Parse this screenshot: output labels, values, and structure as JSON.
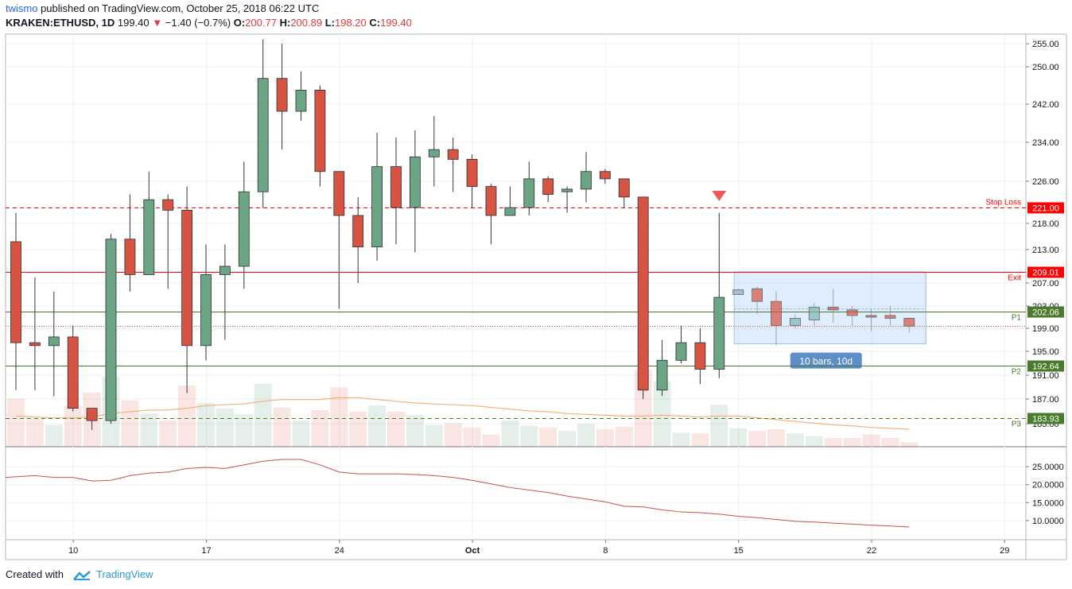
{
  "header": {
    "user": "twismo",
    "published_text": "published on TradingView.com, October 25, 2018 06:22 UTC",
    "symbol": "KRAKEN:ETHUSD, 1D",
    "last": "199.40",
    "change": "−1.40 (−0.7%)",
    "o_label": "O:",
    "o": "200.77",
    "h_label": "H:",
    "h": "200.89",
    "l_label": "L:",
    "l": "198.20",
    "c_label": "C:",
    "c": "199.40"
  },
  "footer": {
    "created_with": "Created with",
    "brand": "TradingView"
  },
  "colors": {
    "up": "#6ba583",
    "down": "#d75442",
    "stop": "#ff0000",
    "exit": "#ff0000",
    "support": "#4a7a2b",
    "projection": "#cde0f7"
  },
  "chart_data": {
    "type": "candlestick",
    "price_axis": {
      "ticks": [
        "255.00",
        "250.00",
        "242.00",
        "234.00",
        "226.00",
        "218.00",
        "213.00",
        "207.00",
        "203.00",
        "199.00",
        "195.00",
        "191.00",
        "187.00",
        "183.00"
      ]
    },
    "date_axis": {
      "ticks": [
        "10",
        "17",
        "24",
        "Oct",
        "8",
        "15",
        "22",
        "29"
      ]
    },
    "candles": [
      {
        "date": "Sep 7",
        "o": 214.5,
        "h": 220,
        "l": 188.5,
        "c": 196.5
      },
      {
        "date": "Sep 8",
        "o": 196.5,
        "h": 208,
        "l": 188.5,
        "c": 196
      },
      {
        "date": "Sep 9",
        "o": 196,
        "h": 205.5,
        "l": 187.5,
        "c": 197.5
      },
      {
        "date": "Sep 10",
        "o": 197.5,
        "h": 199.5,
        "l": 185,
        "c": 185.5
      },
      {
        "date": "Sep 11",
        "o": 185.5,
        "h": 185.5,
        "l": 182,
        "c": 183.5
      },
      {
        "date": "Sep 12",
        "o": 183.5,
        "h": 216,
        "l": 183,
        "c": 215
      },
      {
        "date": "Sep 13",
        "o": 215,
        "h": 223.5,
        "l": 205.5,
        "c": 208.5
      },
      {
        "date": "Sep 14",
        "o": 208.5,
        "h": 228,
        "l": 208.5,
        "c": 222.5
      },
      {
        "date": "Sep 15",
        "o": 222.5,
        "h": 223.5,
        "l": 206,
        "c": 220.5
      },
      {
        "date": "Sep 16",
        "o": 220.5,
        "h": 225,
        "l": 188,
        "c": 196
      },
      {
        "date": "Sep 17",
        "o": 196,
        "h": 214,
        "l": 193.5,
        "c": 208.5
      },
      {
        "date": "Sep 18",
        "o": 208.5,
        "h": 214,
        "l": 197,
        "c": 210
      },
      {
        "date": "Sep 19",
        "o": 210,
        "h": 230,
        "l": 206,
        "c": 224
      },
      {
        "date": "Sep 20",
        "o": 224,
        "h": 256,
        "l": 221,
        "c": 247.5
      },
      {
        "date": "Sep 21",
        "o": 247.5,
        "h": 255,
        "l": 232.5,
        "c": 240.5
      },
      {
        "date": "Sep 22",
        "o": 240.5,
        "h": 249,
        "l": 238.5,
        "c": 245
      },
      {
        "date": "Sep 23",
        "o": 245,
        "h": 246,
        "l": 225,
        "c": 228
      },
      {
        "date": "Sep 24",
        "o": 228,
        "h": 228,
        "l": 202.5,
        "c": 219.5
      },
      {
        "date": "Sep 25",
        "o": 219.5,
        "h": 223,
        "l": 207,
        "c": 213.5
      },
      {
        "date": "Sep 26",
        "o": 213.5,
        "h": 236,
        "l": 211,
        "c": 229
      },
      {
        "date": "Sep 27",
        "o": 229,
        "h": 235,
        "l": 214,
        "c": 221
      },
      {
        "date": "Sep 28",
        "o": 221,
        "h": 236.5,
        "l": 212.5,
        "c": 231
      },
      {
        "date": "Sep 29",
        "o": 231,
        "h": 239.5,
        "l": 225,
        "c": 232.5
      },
      {
        "date": "Sep 30",
        "o": 232.5,
        "h": 235,
        "l": 224,
        "c": 230.5
      },
      {
        "date": "Oct 1",
        "o": 230.5,
        "h": 231.5,
        "l": 221,
        "c": 225
      },
      {
        "date": "Oct 2",
        "o": 225,
        "h": 225.5,
        "l": 214,
        "c": 219.5
      },
      {
        "date": "Oct 3",
        "o": 219.5,
        "h": 225,
        "l": 219.5,
        "c": 221
      },
      {
        "date": "Oct 4",
        "o": 221,
        "h": 230,
        "l": 219.5,
        "c": 226.5
      },
      {
        "date": "Oct 5",
        "o": 226.5,
        "h": 227,
        "l": 222,
        "c": 223.5
      },
      {
        "date": "Oct 6",
        "o": 224,
        "h": 225,
        "l": 220,
        "c": 224.5
      },
      {
        "date": "Oct 7",
        "o": 224.5,
        "h": 232,
        "l": 222,
        "c": 228
      },
      {
        "date": "Oct 8",
        "o": 228,
        "h": 228.5,
        "l": 225.5,
        "c": 226.5
      },
      {
        "date": "Oct 9",
        "o": 226.5,
        "h": 226.5,
        "l": 221,
        "c": 223
      },
      {
        "date": "Oct 10",
        "o": 223,
        "h": 223,
        "l": 187,
        "c": 188.5
      },
      {
        "date": "Oct 11",
        "o": 188.5,
        "h": 197,
        "l": 187.5,
        "c": 193.5
      },
      {
        "date": "Oct 12",
        "o": 193.5,
        "h": 199.5,
        "l": 193,
        "c": 196.5
      },
      {
        "date": "Oct 13",
        "o": 196.5,
        "h": 199,
        "l": 189.5,
        "c": 192
      },
      {
        "date": "Oct 14",
        "o": 192,
        "h": 220,
        "l": 190.5,
        "c": 204.5
      },
      {
        "date": "Oct 15",
        "o": 205,
        "h": 206,
        "l": 205,
        "c": 205.8
      },
      {
        "date": "Oct 16",
        "o": 206,
        "h": 206.5,
        "l": 201.5,
        "c": 203.8
      },
      {
        "date": "Oct 17",
        "o": 203.8,
        "h": 205.5,
        "l": 196,
        "c": 199.5
      },
      {
        "date": "Oct 18",
        "o": 199.5,
        "h": 201.5,
        "l": 199,
        "c": 200.8
      },
      {
        "date": "Oct 19",
        "o": 200.5,
        "h": 203.5,
        "l": 199.5,
        "c": 202.8
      },
      {
        "date": "Oct 20",
        "o": 202.8,
        "h": 206,
        "l": 200,
        "c": 202.3
      },
      {
        "date": "Oct 21",
        "o": 202.3,
        "h": 203,
        "l": 199.5,
        "c": 201.3
      },
      {
        "date": "Oct 22",
        "o": 201.3,
        "h": 202.5,
        "l": 198.5,
        "c": 201
      },
      {
        "date": "Oct 23",
        "o": 201.3,
        "h": 203,
        "l": 199.5,
        "c": 200.8
      },
      {
        "date": "Oct 24",
        "o": 200.8,
        "h": 200.89,
        "l": 198.2,
        "c": 199.4
      }
    ],
    "volume_levels": [
      0.55,
      0.32,
      0.25,
      0.47,
      0.62,
      0.8,
      0.53,
      0.38,
      0.3,
      0.7,
      0.5,
      0.44,
      0.37,
      0.72,
      0.45,
      0.3,
      0.42,
      0.68,
      0.4,
      0.47,
      0.4,
      0.36,
      0.25,
      0.27,
      0.22,
      0.14,
      0.3,
      0.24,
      0.22,
      0.18,
      0.26,
      0.2,
      0.23,
      0.88,
      0.75,
      0.16,
      0.15,
      0.48,
      0.21,
      0.18,
      0.2,
      0.15,
      0.12,
      0.1,
      0.1,
      0.14,
      0.1,
      0.05
    ],
    "volume_ma": [
      0.35,
      0.34,
      0.33,
      0.33,
      0.34,
      0.38,
      0.4,
      0.42,
      0.42,
      0.44,
      0.47,
      0.48,
      0.49,
      0.52,
      0.54,
      0.54,
      0.54,
      0.56,
      0.56,
      0.54,
      0.52,
      0.5,
      0.49,
      0.48,
      0.47,
      0.45,
      0.43,
      0.41,
      0.4,
      0.38,
      0.37,
      0.36,
      0.35,
      0.35,
      0.36,
      0.35,
      0.34,
      0.35,
      0.35,
      0.33,
      0.31,
      0.29,
      0.27,
      0.25,
      0.24,
      0.22,
      0.21,
      0.2
    ],
    "levels": [
      {
        "name": "Stop Loss",
        "value": 221.0,
        "label": "221.00",
        "style": "dashed",
        "color": "#ff0000"
      },
      {
        "name": "Exit",
        "value": 209.01,
        "label": "209.01",
        "style": "solid",
        "color": "#ff0000"
      },
      {
        "name": "P1",
        "value": 202.06,
        "label": "202.06",
        "style": "solid",
        "color": "#4a7a2b"
      },
      {
        "name": "P2",
        "value": 192.64,
        "label": "192.64",
        "style": "solid",
        "color": "#4a7a2b"
      },
      {
        "name": "P3",
        "value": 183.93,
        "label": "183.93",
        "style": "dashed",
        "color": "#4a7a2b"
      }
    ],
    "close_line": 199.4,
    "projection": {
      "label": "10 bars, 10d",
      "top": 209.0,
      "bottom": 196.3
    },
    "indicator": {
      "ticks": [
        "25.0000",
        "20.0000",
        "15.0000",
        "10.0000"
      ],
      "ymin": 6,
      "ymax": 29,
      "values": [
        22,
        22.5,
        22,
        22,
        21,
        21.2,
        22.5,
        23.2,
        23.5,
        24.5,
        24.8,
        24.5,
        25.5,
        26.5,
        27,
        27,
        25.5,
        23.5,
        23,
        23,
        23,
        22.8,
        22.5,
        22,
        21.2,
        20.2,
        19.2,
        18.5,
        17.8,
        16.8,
        16,
        15.2,
        14,
        13.8,
        13,
        12.4,
        12.2,
        11.8,
        11.2,
        10.8,
        10.3,
        9.8,
        9.6,
        9.3,
        9.0,
        8.7,
        8.5,
        8.2
      ]
    }
  }
}
